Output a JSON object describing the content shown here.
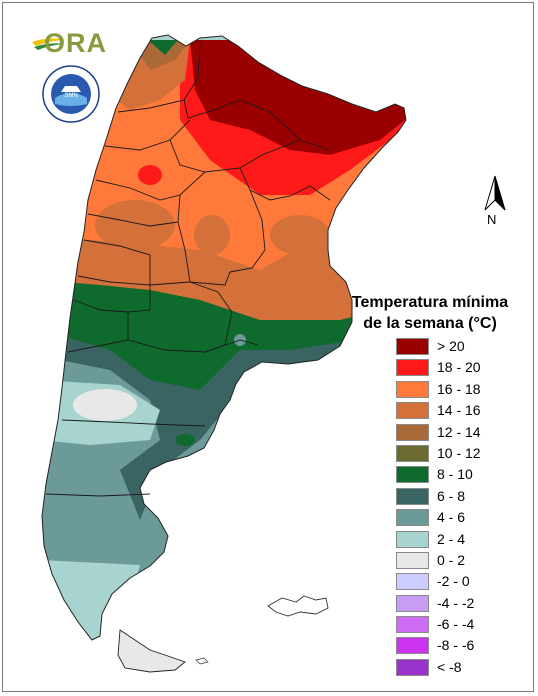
{
  "logos": {
    "ora": "ORA",
    "seal_text": "SERVICIO METEOROLÓGICO NACIONAL ARGENTINA",
    "seal_center": "SMN"
  },
  "north_arrow": {
    "label": "N"
  },
  "legend": {
    "title_line1": "Temperatura mínima",
    "title_line2": "de la semana (°C)",
    "items": [
      {
        "label": "> 20",
        "color": "#9b0000"
      },
      {
        "label": "18 - 20",
        "color": "#ff1a1a"
      },
      {
        "label": "16 - 18",
        "color": "#ff7a3a"
      },
      {
        "label": "14 - 16",
        "color": "#d4703a"
      },
      {
        "label": "12 - 14",
        "color": "#a96a38"
      },
      {
        "label": "10 - 12",
        "color": "#6b6a30"
      },
      {
        "label": "8 - 10",
        "color": "#0f6a2e"
      },
      {
        "label": "6 - 8",
        "color": "#3a6462"
      },
      {
        "label": "4 - 6",
        "color": "#6c9a98"
      },
      {
        "label": "2 - 4",
        "color": "#a8d4d0"
      },
      {
        "label": "0 - 2",
        "color": "#e8e8e8"
      },
      {
        "label": "-2 - 0",
        "color": "#ccccff"
      },
      {
        "label": "-4 - -2",
        "color": "#c79cf2"
      },
      {
        "label": "-6 - -4",
        "color": "#cc6cf5"
      },
      {
        "label": "-8 - -6",
        "color": "#cc33ee"
      },
      {
        "label": "< -8",
        "color": "#9933cc"
      }
    ]
  }
}
